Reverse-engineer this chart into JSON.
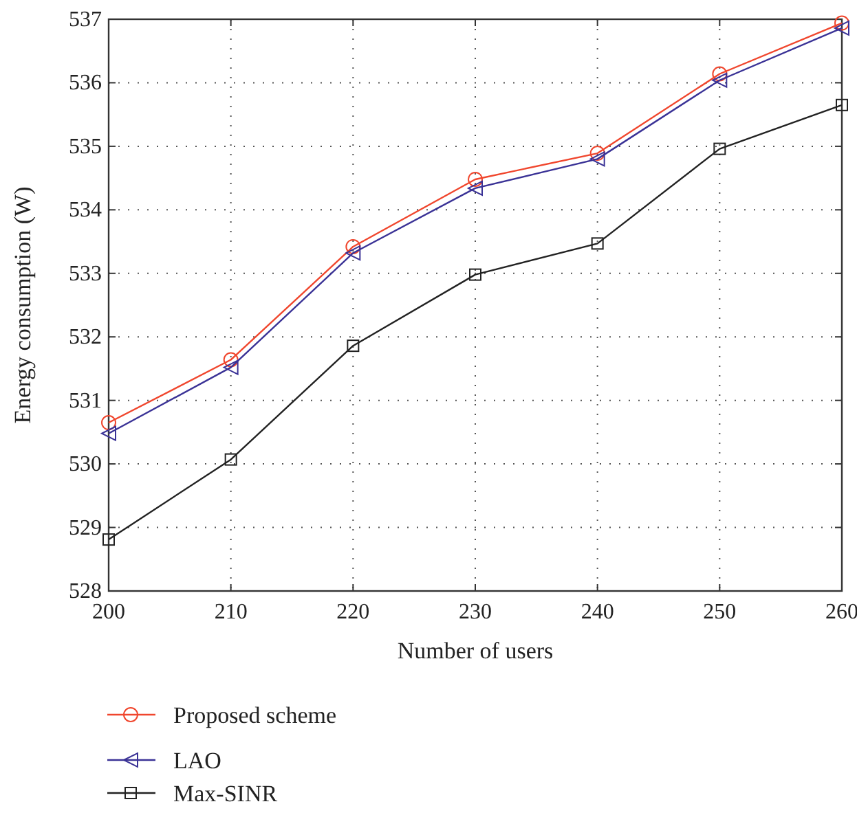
{
  "chart_data": {
    "type": "line",
    "xlabel": "Number of users",
    "ylabel": "Energy consumption (W)",
    "x": [
      200,
      210,
      220,
      230,
      240,
      250,
      260
    ],
    "xlim": [
      200,
      260
    ],
    "xticks": [
      200,
      210,
      220,
      230,
      240,
      250,
      260
    ],
    "ylim": [
      528,
      537
    ],
    "yticks": [
      528,
      529,
      530,
      531,
      532,
      533,
      534,
      535,
      536,
      537
    ],
    "grid": true,
    "legend": "bottom",
    "series": [
      {
        "name": "Proposed scheme",
        "color": "#f0462d",
        "marker": "circle",
        "values": [
          530.65,
          531.64,
          533.42,
          534.48,
          534.89,
          536.14,
          536.94
        ]
      },
      {
        "name": "LAO",
        "color": "#3a3296",
        "marker": "triangle",
        "values": [
          530.48,
          531.52,
          533.32,
          534.34,
          534.8,
          536.04,
          536.86
        ]
      },
      {
        "name": "Max-SINR",
        "color": "#222222",
        "marker": "square",
        "values": [
          528.81,
          530.07,
          531.86,
          532.98,
          533.47,
          534.96,
          535.65
        ]
      }
    ]
  }
}
